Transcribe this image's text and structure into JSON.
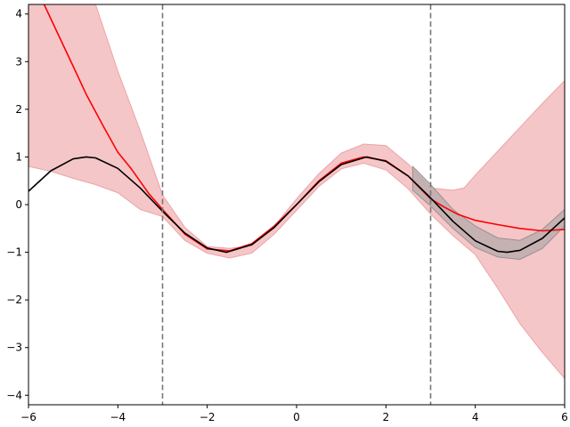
{
  "chart_data": {
    "type": "line",
    "title": "",
    "xlabel": "",
    "ylabel": "",
    "xlim": [
      -6,
      6
    ],
    "ylim": [
      -4.2,
      4.2
    ],
    "grid": false,
    "legend": "none",
    "x_ticks": [
      -6,
      -4,
      -2,
      0,
      2,
      4,
      6
    ],
    "x_tick_labels": [
      "−6",
      "−4",
      "−2",
      "0",
      "2",
      "4",
      "6"
    ],
    "y_ticks": [
      -4,
      -3,
      -2,
      -1,
      0,
      1,
      2,
      3,
      4
    ],
    "y_tick_labels": [
      "−4",
      "−3",
      "−2",
      "−1",
      "0",
      "1",
      "2",
      "3",
      "4"
    ],
    "vlines": [
      {
        "x": -3,
        "style": "dashed",
        "color": "#777777"
      },
      {
        "x": 3,
        "style": "dashed",
        "color": "#777777"
      }
    ],
    "bands": [
      {
        "color": "#f4c6c8",
        "edge_color": "#eda3a6",
        "x": [
          -6,
          -5.5,
          -5,
          -4.5,
          -4,
          -3.5,
          -3,
          -2.5,
          -2,
          -1.5,
          -1,
          -0.5,
          0,
          0.5,
          1,
          1.5,
          2,
          2.5,
          3,
          3.5,
          3.75,
          4,
          4.5,
          5,
          5.5,
          6
        ],
        "lower": [
          0.8,
          0.7,
          0.55,
          0.42,
          0.25,
          -0.1,
          -0.25,
          -0.75,
          -1.02,
          -1.12,
          -1.02,
          -0.62,
          -0.12,
          0.38,
          0.75,
          0.87,
          0.73,
          0.33,
          -0.2,
          -0.65,
          -0.85,
          -1.05,
          -1.75,
          -2.5,
          -3.1,
          -3.65
        ],
        "upper": [
          4.5,
          4.4,
          4.3,
          4.2,
          2.8,
          1.55,
          0.2,
          -0.48,
          -0.88,
          -0.92,
          -0.86,
          -0.45,
          0.12,
          0.65,
          1.08,
          1.27,
          1.24,
          0.85,
          0.35,
          0.3,
          0.35,
          0.62,
          1.12,
          1.62,
          2.12,
          2.6
        ]
      },
      {
        "color": "#b6a9aa",
        "edge_color": "#9a9090",
        "x": [
          2.6,
          3,
          3.5,
          4,
          4.5,
          5,
          5.5,
          6
        ],
        "lower": [
          0.3,
          -0.03,
          -0.5,
          -0.9,
          -1.1,
          -1.15,
          -0.92,
          -0.45
        ],
        "upper": [
          0.8,
          0.42,
          -0.1,
          -0.45,
          -0.7,
          -0.75,
          -0.52,
          -0.1
        ]
      }
    ],
    "series": [
      {
        "color": "#ff0000",
        "x": [
          -6,
          -5.7,
          -5.3,
          -5,
          -4.7,
          -4.3,
          -4,
          -3.7,
          -3.3,
          -3,
          -2.5,
          -2,
          -1.5,
          -1,
          -0.5,
          0,
          0.5,
          1,
          1.5,
          2,
          2.5,
          3,
          3.3,
          3.6,
          4,
          4.5,
          5,
          5.5,
          6
        ],
        "y": [
          4.6,
          4.3,
          3.5,
          2.9,
          2.3,
          1.6,
          1.1,
          0.75,
          0.22,
          -0.1,
          -0.62,
          -0.93,
          -0.97,
          -0.82,
          -0.45,
          0.0,
          0.5,
          0.87,
          1.0,
          0.92,
          0.6,
          0.12,
          -0.05,
          -0.2,
          -0.33,
          -0.42,
          -0.5,
          -0.55,
          -0.52
        ]
      },
      {
        "color": "#000000",
        "x": [
          -6,
          -5.5,
          -5,
          -4.71,
          -4.5,
          -4,
          -3.5,
          -3,
          -2.5,
          -2,
          -1.57,
          -1,
          -0.5,
          0,
          0.5,
          1,
          1.57,
          2,
          2.5,
          3,
          3.5,
          4,
          4.5,
          4.71,
          5,
          5.5,
          6
        ],
        "y": [
          0.28,
          0.71,
          0.96,
          1.0,
          0.98,
          0.76,
          0.35,
          -0.14,
          -0.6,
          -0.91,
          -1.0,
          -0.84,
          -0.48,
          0.0,
          0.48,
          0.84,
          1.0,
          0.91,
          0.6,
          0.14,
          -0.35,
          -0.76,
          -0.98,
          -1.0,
          -0.96,
          -0.71,
          -0.28
        ]
      }
    ]
  }
}
